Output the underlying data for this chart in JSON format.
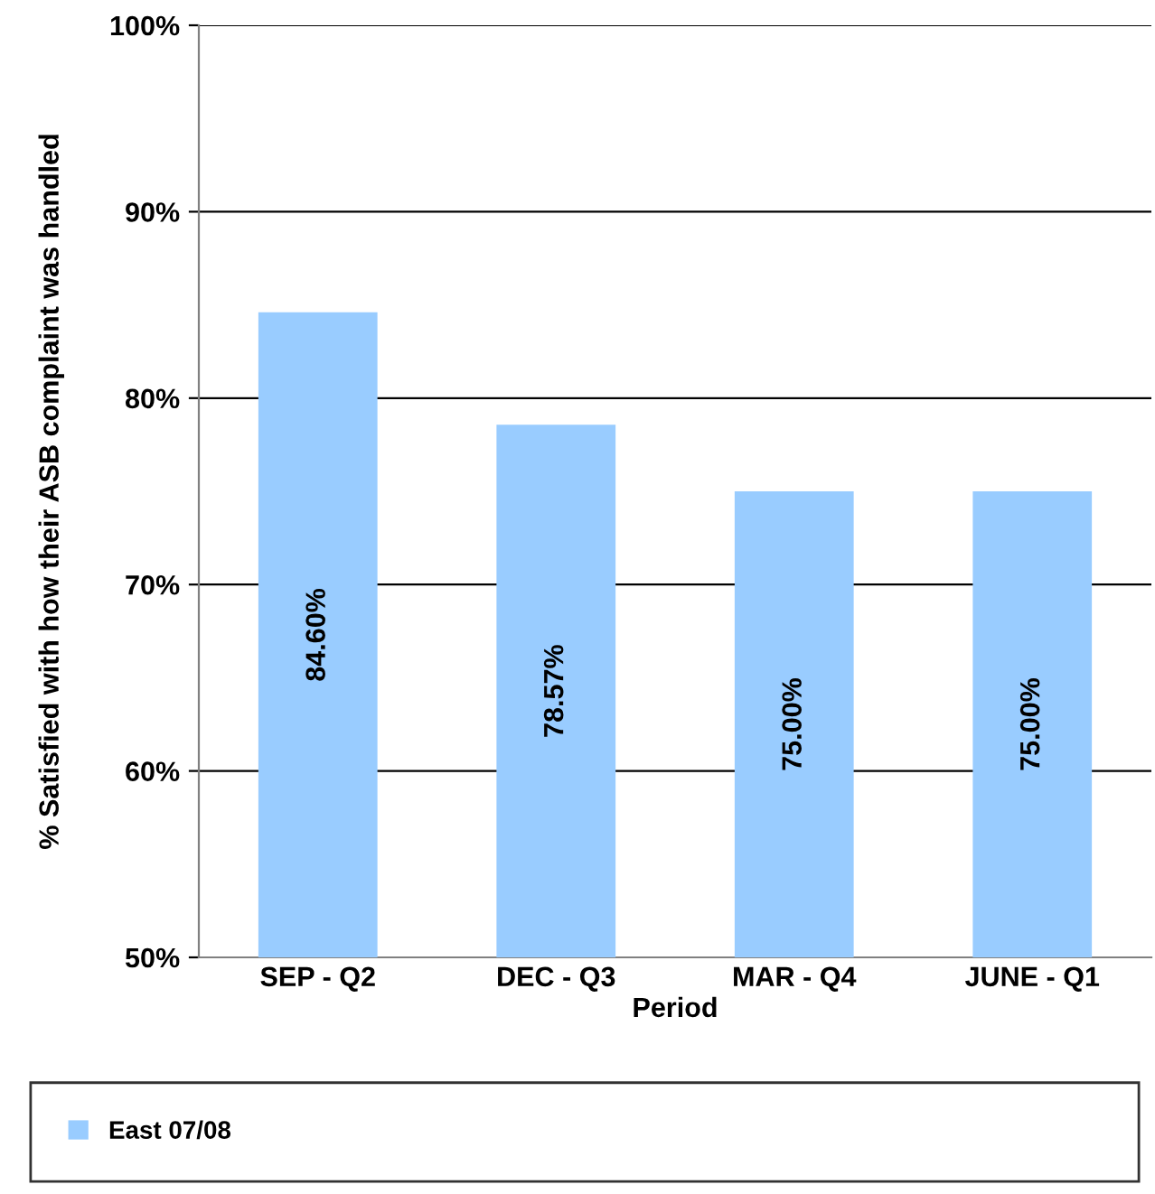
{
  "chart_data": {
    "type": "bar",
    "xlabel": "Period",
    "ylabel": "% Satisfied with how their ASB complaint was handled",
    "categories": [
      "SEP - Q2",
      "DEC - Q3",
      "MAR - Q4",
      "JUNE - Q1"
    ],
    "series": [
      {
        "name": "East 07/08",
        "color": "#99ccff",
        "values": [
          84.6,
          78.57,
          75.0,
          75.0
        ],
        "value_labels": [
          "84.60%",
          "78.57%",
          "75.00%",
          "75.00%"
        ]
      }
    ],
    "ylim": [
      50,
      100
    ],
    "yticks": [
      {
        "value": 50,
        "label": "50%"
      },
      {
        "value": 60,
        "label": "60%"
      },
      {
        "value": 70,
        "label": "70%"
      },
      {
        "value": 80,
        "label": "80%"
      },
      {
        "value": 90,
        "label": "90%"
      },
      {
        "value": 100,
        "label": "100%"
      }
    ],
    "grid": "y",
    "legend": "bottom"
  }
}
